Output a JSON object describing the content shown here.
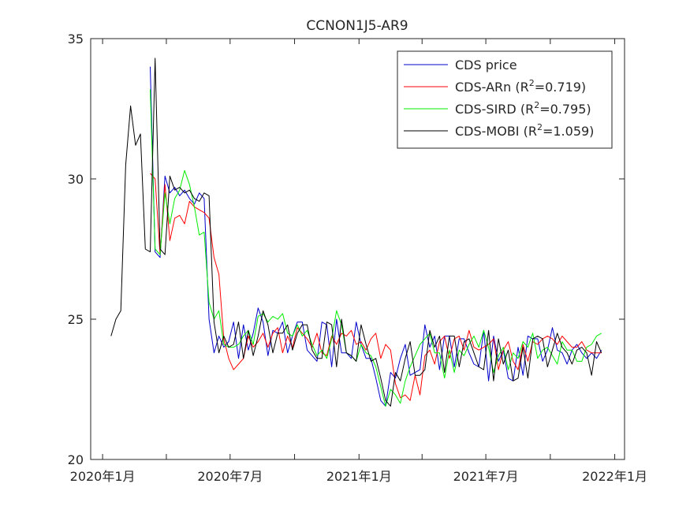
{
  "chart_data": {
    "type": "line",
    "title": "CCNON1J5-AR9",
    "xlabel": "",
    "ylabel": "",
    "xlim": [
      "2019-12-15",
      "2022-01-15"
    ],
    "ylim": [
      20,
      35
    ],
    "yticks": [
      20,
      25,
      30,
      35
    ],
    "xticks": [
      {
        "date": "2020-01-01",
        "label": "2020年1月"
      },
      {
        "date": "2020-04-01",
        "label": ""
      },
      {
        "date": "2020-07-01",
        "label": "2020年7月"
      },
      {
        "date": "2020-10-01",
        "label": ""
      },
      {
        "date": "2021-01-01",
        "label": "2021年1月"
      },
      {
        "date": "2021-04-01",
        "label": ""
      },
      {
        "date": "2021-07-01",
        "label": "2021年7月"
      },
      {
        "date": "2021-10-01",
        "label": ""
      },
      {
        "date": "2022-01-01",
        "label": "2022年1月"
      }
    ],
    "grid": false,
    "legend_position": "top-right",
    "legend": [
      {
        "name": "CDS price",
        "prefix": "CDS price",
        "r2": "",
        "color": "#0000cc"
      },
      {
        "name": "CDS-ARn",
        "prefix": "CDS-ARn   (R",
        "r2": "=0.719)",
        "color": "#ff0000"
      },
      {
        "name": "CDS-SIRD",
        "prefix": "CDS-SIRD (R",
        "r2": "=0.795)",
        "color": "#00ee00"
      },
      {
        "name": "CDS-MOBI",
        "prefix": "CDS-MOBI (R",
        "r2": "=1.059)",
        "color": "#000000"
      }
    ],
    "series": [
      {
        "name": "CDS price",
        "color": "#0000cc",
        "x": [
          "2020-03-09",
          "2020-03-16",
          "2020-03-23",
          "2020-03-30",
          "2020-04-06",
          "2020-04-13",
          "2020-04-20",
          "2020-04-27",
          "2020-05-04",
          "2020-05-11",
          "2020-05-18",
          "2020-05-25",
          "2020-06-01",
          "2020-06-08",
          "2020-06-15",
          "2020-06-22",
          "2020-06-29",
          "2020-07-06",
          "2020-07-13",
          "2020-07-20",
          "2020-07-27",
          "2020-08-03",
          "2020-08-10",
          "2020-08-17",
          "2020-08-24",
          "2020-08-31",
          "2020-09-07",
          "2020-09-14",
          "2020-09-21",
          "2020-09-28",
          "2020-10-05",
          "2020-10-12",
          "2020-10-19",
          "2020-10-26",
          "2020-11-02",
          "2020-11-09",
          "2020-11-16",
          "2020-11-23",
          "2020-11-30",
          "2020-12-07",
          "2020-12-14",
          "2020-12-21",
          "2020-12-28",
          "2021-01-04",
          "2021-01-11",
          "2021-01-18",
          "2021-01-25",
          "2021-02-01",
          "2021-02-08",
          "2021-02-15",
          "2021-02-22",
          "2021-03-01",
          "2021-03-08",
          "2021-03-15",
          "2021-03-22",
          "2021-03-29",
          "2021-04-05",
          "2021-04-12",
          "2021-04-19",
          "2021-04-26",
          "2021-05-03",
          "2021-05-10",
          "2021-05-17",
          "2021-05-24",
          "2021-05-31",
          "2021-06-07",
          "2021-06-14",
          "2021-06-21",
          "2021-06-28",
          "2021-07-05",
          "2021-07-12",
          "2021-07-19",
          "2021-07-26",
          "2021-08-02",
          "2021-08-09",
          "2021-08-16",
          "2021-08-23",
          "2021-08-30",
          "2021-09-06",
          "2021-09-13",
          "2021-09-20",
          "2021-09-27",
          "2021-10-04",
          "2021-10-11",
          "2021-10-18",
          "2021-10-25",
          "2021-11-01",
          "2021-11-08",
          "2021-11-15",
          "2021-11-22",
          "2021-11-29",
          "2021-12-06",
          "2021-12-13"
        ],
        "y": [
          34.0,
          27.4,
          27.2,
          30.1,
          29.5,
          29.7,
          29.4,
          29.6,
          29.3,
          29.1,
          29.5,
          29.3,
          25.0,
          23.8,
          24.4,
          24.0,
          24.2,
          24.9,
          23.6,
          24.8,
          23.9,
          24.5,
          25.4,
          24.9,
          23.7,
          24.6,
          24.5,
          24.9,
          23.8,
          24.4,
          24.9,
          24.9,
          23.9,
          23.7,
          23.5,
          24.9,
          24.8,
          23.3,
          25.0,
          23.8,
          23.8,
          23.6,
          24.9,
          24.1,
          23.6,
          23.6,
          22.9,
          22.1,
          21.9,
          23.1,
          22.9,
          23.6,
          24.1,
          23.0,
          23.1,
          23.2,
          24.8,
          24.0,
          24.4,
          23.2,
          24.4,
          24.4,
          23.3,
          24.3,
          24.3,
          23.8,
          23.4,
          23.3,
          24.6,
          22.8,
          24.4,
          23.5,
          23.9,
          22.9,
          22.8,
          24.0,
          23.0,
          24.4,
          24.3,
          24.3,
          23.5,
          23.9,
          24.7,
          23.9,
          23.8,
          23.4,
          23.9,
          24.1,
          23.8,
          23.6,
          23.8,
          23.6,
          23.9
        ]
      },
      {
        "name": "CDS-ARn",
        "color": "#ff0000",
        "x": [
          "2020-03-09",
          "2020-03-16",
          "2020-03-23",
          "2020-03-30",
          "2020-04-06",
          "2020-04-13",
          "2020-04-20",
          "2020-04-27",
          "2020-05-04",
          "2020-05-11",
          "2020-05-18",
          "2020-05-25",
          "2020-06-01",
          "2020-06-08",
          "2020-06-15",
          "2020-06-22",
          "2020-06-29",
          "2020-07-06",
          "2020-07-13",
          "2020-07-20",
          "2020-07-27",
          "2020-08-03",
          "2020-08-10",
          "2020-08-17",
          "2020-08-24",
          "2020-08-31",
          "2020-09-07",
          "2020-09-14",
          "2020-09-21",
          "2020-09-28",
          "2020-10-05",
          "2020-10-12",
          "2020-10-19",
          "2020-10-26",
          "2020-11-02",
          "2020-11-09",
          "2020-11-16",
          "2020-11-23",
          "2020-11-30",
          "2020-12-07",
          "2020-12-14",
          "2020-12-21",
          "2020-12-28",
          "2021-01-04",
          "2021-01-11",
          "2021-01-18",
          "2021-01-25",
          "2021-02-01",
          "2021-02-08",
          "2021-02-15",
          "2021-02-22",
          "2021-03-01",
          "2021-03-08",
          "2021-03-15",
          "2021-03-22",
          "2021-03-29",
          "2021-04-05",
          "2021-04-12",
          "2021-04-19",
          "2021-04-26",
          "2021-05-03",
          "2021-05-10",
          "2021-05-17",
          "2021-05-24",
          "2021-05-31",
          "2021-06-07",
          "2021-06-14",
          "2021-06-21",
          "2021-06-28",
          "2021-07-05",
          "2021-07-12",
          "2021-07-19",
          "2021-07-26",
          "2021-08-02",
          "2021-08-09",
          "2021-08-16",
          "2021-08-23",
          "2021-08-30",
          "2021-09-06",
          "2021-09-13",
          "2021-09-20",
          "2021-09-27",
          "2021-10-04",
          "2021-10-11",
          "2021-10-18",
          "2021-10-25",
          "2021-11-01",
          "2021-11-08",
          "2021-11-15",
          "2021-11-22",
          "2021-11-29",
          "2021-12-06",
          "2021-12-13"
        ],
        "y": [
          30.2,
          30.0,
          27.3,
          29.8,
          27.8,
          28.6,
          28.7,
          28.4,
          29.2,
          29.0,
          28.9,
          28.8,
          28.6,
          27.2,
          26.6,
          24.3,
          23.6,
          23.2,
          23.4,
          23.6,
          24.4,
          24.0,
          24.2,
          24.5,
          24.0,
          24.5,
          24.7,
          23.8,
          24.4,
          24.0,
          24.7,
          24.5,
          24.3,
          24.0,
          24.5,
          23.8,
          23.7,
          24.4,
          24.1,
          24.5,
          24.4,
          24.6,
          24.1,
          24.2,
          23.9,
          24.3,
          24.5,
          23.6,
          24.1,
          23.9,
          22.7,
          22.2,
          22.3,
          22.1,
          23.0,
          22.3,
          23.7,
          23.9,
          23.4,
          24.2,
          24.4,
          23.6,
          24.3,
          24.4,
          23.9,
          24.6,
          24.0,
          23.9,
          24.0,
          24.1,
          24.3,
          23.2,
          23.9,
          24.2,
          23.5,
          23.2,
          24.1,
          23.5,
          24.2,
          24.1,
          24.3,
          24.4,
          24.3,
          24.1,
          24.4,
          24.2,
          24.0,
          24.0,
          24.2,
          23.9,
          23.8,
          23.8,
          23.8
        ]
      },
      {
        "name": "CDS-SIRD",
        "color": "#00ee00",
        "x": [
          "2020-03-09",
          "2020-03-16",
          "2020-03-23",
          "2020-03-30",
          "2020-04-06",
          "2020-04-13",
          "2020-04-20",
          "2020-04-27",
          "2020-05-04",
          "2020-05-11",
          "2020-05-18",
          "2020-05-25",
          "2020-06-01",
          "2020-06-08",
          "2020-06-15",
          "2020-06-22",
          "2020-06-29",
          "2020-07-06",
          "2020-07-13",
          "2020-07-20",
          "2020-07-27",
          "2020-08-03",
          "2020-08-10",
          "2020-08-17",
          "2020-08-24",
          "2020-08-31",
          "2020-09-07",
          "2020-09-14",
          "2020-09-21",
          "2020-09-28",
          "2020-10-05",
          "2020-10-12",
          "2020-10-19",
          "2020-10-26",
          "2020-11-02",
          "2020-11-09",
          "2020-11-16",
          "2020-11-23",
          "2020-11-30",
          "2020-12-07",
          "2020-12-14",
          "2020-12-21",
          "2020-12-28",
          "2021-01-04",
          "2021-01-11",
          "2021-01-18",
          "2021-01-25",
          "2021-02-01",
          "2021-02-08",
          "2021-02-15",
          "2021-02-22",
          "2021-03-01",
          "2021-03-08",
          "2021-03-15",
          "2021-03-22",
          "2021-03-29",
          "2021-04-05",
          "2021-04-12",
          "2021-04-19",
          "2021-04-26",
          "2021-05-03",
          "2021-05-10",
          "2021-05-17",
          "2021-05-24",
          "2021-05-31",
          "2021-06-07",
          "2021-06-14",
          "2021-06-21",
          "2021-06-28",
          "2021-07-05",
          "2021-07-12",
          "2021-07-19",
          "2021-07-26",
          "2021-08-02",
          "2021-08-09",
          "2021-08-16",
          "2021-08-23",
          "2021-08-30",
          "2021-09-06",
          "2021-09-13",
          "2021-09-20",
          "2021-09-27",
          "2021-10-04",
          "2021-10-11",
          "2021-10-18",
          "2021-10-25",
          "2021-11-01",
          "2021-11-08",
          "2021-11-15",
          "2021-11-22",
          "2021-11-29",
          "2021-12-06",
          "2021-12-13"
        ],
        "y": [
          33.2,
          27.5,
          27.3,
          29.5,
          28.4,
          29.3,
          29.6,
          30.3,
          29.8,
          29.0,
          28.0,
          28.1,
          25.6,
          25.0,
          25.3,
          24.1,
          24.0,
          24.0,
          24.1,
          24.4,
          24.6,
          24.1,
          25.1,
          25.2,
          24.9,
          25.1,
          25.0,
          25.2,
          24.5,
          24.4,
          24.8,
          24.4,
          24.6,
          24.1,
          23.7,
          23.9,
          23.6,
          24.3,
          25.3,
          24.8,
          23.8,
          23.7,
          23.5,
          24.1,
          23.8,
          23.7,
          23.3,
          22.6,
          21.9,
          22.5,
          22.3,
          22.0,
          22.8,
          23.3,
          23.7,
          24.1,
          24.3,
          24.5,
          23.8,
          23.8,
          22.9,
          23.9,
          23.1,
          23.9,
          23.7,
          24.1,
          24.4,
          24.0,
          24.6,
          24.0,
          23.1,
          23.7,
          24.0,
          23.2,
          23.8,
          23.6,
          24.2,
          24.0,
          24.5,
          23.6,
          23.9,
          24.0,
          23.7,
          23.4,
          24.2,
          23.9,
          23.9,
          23.5,
          23.5,
          24.0,
          24.1,
          24.4,
          24.5
        ]
      },
      {
        "name": "CDS-MOBI",
        "color": "#000000",
        "x": [
          "2020-01-13",
          "2020-01-20",
          "2020-01-27",
          "2020-02-03",
          "2020-02-10",
          "2020-02-17",
          "2020-02-24",
          "2020-03-02",
          "2020-03-09",
          "2020-03-16",
          "2020-03-23",
          "2020-03-30",
          "2020-04-06",
          "2020-04-13",
          "2020-04-20",
          "2020-04-27",
          "2020-05-04",
          "2020-05-11",
          "2020-05-18",
          "2020-05-25",
          "2020-06-01",
          "2020-06-08",
          "2020-06-15",
          "2020-06-22",
          "2020-06-29",
          "2020-07-06",
          "2020-07-13",
          "2020-07-20",
          "2020-07-27",
          "2020-08-03",
          "2020-08-10",
          "2020-08-17",
          "2020-08-24",
          "2020-08-31",
          "2020-09-07",
          "2020-09-14",
          "2020-09-21",
          "2020-09-28",
          "2020-10-05",
          "2020-10-12",
          "2020-10-19",
          "2020-10-26",
          "2020-11-02",
          "2020-11-09",
          "2020-11-16",
          "2020-11-23",
          "2020-11-30",
          "2020-12-07",
          "2020-12-14",
          "2020-12-21",
          "2020-12-28",
          "2021-01-04",
          "2021-01-11",
          "2021-01-18",
          "2021-01-25",
          "2021-02-01",
          "2021-02-08",
          "2021-02-15",
          "2021-02-22",
          "2021-03-01",
          "2021-03-08",
          "2021-03-15",
          "2021-03-22",
          "2021-03-29",
          "2021-04-05",
          "2021-04-12",
          "2021-04-19",
          "2021-04-26",
          "2021-05-03",
          "2021-05-10",
          "2021-05-17",
          "2021-05-24",
          "2021-05-31",
          "2021-06-07",
          "2021-06-14",
          "2021-06-21",
          "2021-06-28",
          "2021-07-05",
          "2021-07-12",
          "2021-07-19",
          "2021-07-26",
          "2021-08-02",
          "2021-08-09",
          "2021-08-16",
          "2021-08-23",
          "2021-08-30",
          "2021-09-06",
          "2021-09-13",
          "2021-09-20",
          "2021-09-27",
          "2021-10-04",
          "2021-10-11",
          "2021-10-18",
          "2021-10-25",
          "2021-11-01",
          "2021-11-08",
          "2021-11-15",
          "2021-11-22",
          "2021-11-29",
          "2021-12-06",
          "2021-12-13"
        ],
        "y": [
          24.4,
          25.0,
          25.3,
          30.5,
          32.6,
          31.2,
          31.6,
          27.5,
          27.4,
          34.3,
          27.5,
          27.3,
          30.1,
          29.6,
          29.7,
          29.5,
          29.6,
          29.3,
          29.2,
          29.5,
          29.4,
          24.9,
          23.8,
          24.4,
          24.0,
          24.1,
          24.9,
          23.6,
          24.6,
          23.7,
          24.4,
          25.3,
          24.8,
          23.8,
          24.5,
          24.5,
          24.8,
          23.9,
          24.5,
          24.8,
          24.8,
          23.9,
          23.6,
          23.6,
          24.9,
          24.8,
          23.3,
          25.0,
          23.8,
          23.7,
          23.5,
          24.8,
          24.1,
          23.5,
          23.6,
          22.9,
          22.1,
          21.9,
          23.1,
          22.8,
          23.6,
          24.2,
          23.0,
          23.0,
          23.2,
          24.6,
          24.0,
          24.4,
          23.1,
          24.4,
          24.4,
          23.3,
          24.2,
          24.3,
          23.8,
          23.3,
          23.2,
          24.6,
          22.8,
          24.3,
          23.4,
          23.9,
          22.8,
          22.9,
          24.0,
          22.9,
          24.3,
          24.4,
          24.3,
          23.3,
          23.9,
          24.5,
          24.0,
          23.8,
          23.4,
          23.9,
          24.0,
          23.8,
          23.0,
          24.2,
          23.8
        ]
      }
    ]
  }
}
